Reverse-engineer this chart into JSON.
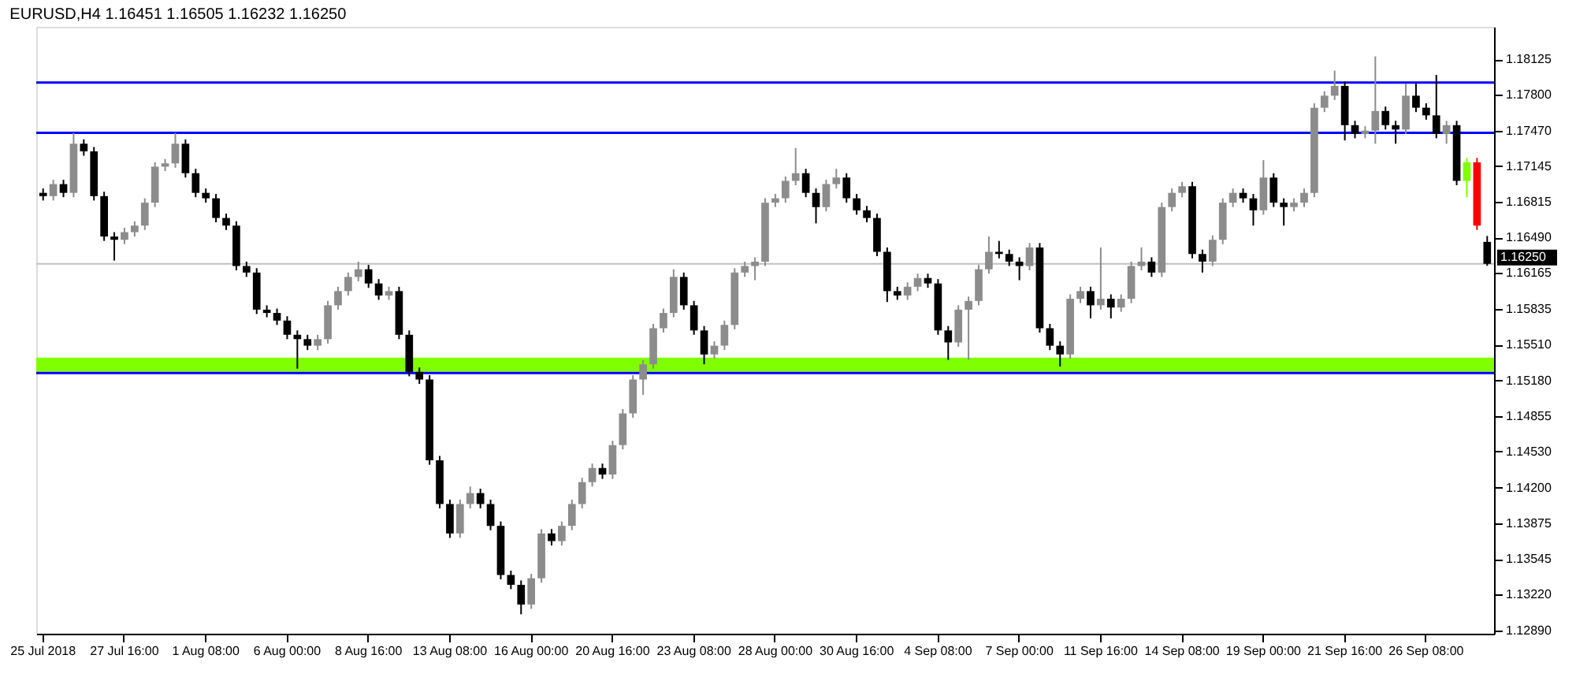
{
  "chart_data": {
    "type": "candlestick",
    "title": "EURUSD,H4  1.16451 1.16505 1.16232 1.16250",
    "categories": [
      "25 Jul 2018",
      null,
      null,
      null,
      null,
      null,
      null,
      null,
      "27 Jul 16:00",
      null,
      null,
      null,
      null,
      null,
      null,
      null,
      "1 Aug 08:00",
      null,
      null,
      null,
      null,
      null,
      null,
      null,
      "6 Aug 00:00",
      null,
      null,
      null,
      null,
      null,
      null,
      null,
      "8 Aug 16:00",
      null,
      null,
      null,
      null,
      null,
      null,
      null,
      "13 Aug 08:00",
      null,
      null,
      null,
      null,
      null,
      null,
      null,
      "16 Aug 00:00",
      null,
      null,
      null,
      null,
      null,
      null,
      null,
      "20 Aug 16:00",
      null,
      null,
      null,
      null,
      null,
      null,
      null,
      "23 Aug 08:00",
      null,
      null,
      null,
      null,
      null,
      null,
      null,
      "28 Aug 00:00",
      null,
      null,
      null,
      null,
      null,
      null,
      null,
      "30 Aug 16:00",
      null,
      null,
      null,
      null,
      null,
      null,
      null,
      "4 Sep 08:00",
      null,
      null,
      null,
      null,
      null,
      null,
      null,
      "7 Sep 00:00",
      null,
      null,
      null,
      null,
      null,
      null,
      null,
      "11 Sep 16:00",
      null,
      null,
      null,
      null,
      null,
      null,
      null,
      "14 Sep 08:00",
      null,
      null,
      null,
      null,
      null,
      null,
      null,
      "19 Sep 00:00",
      null,
      null,
      null,
      null,
      null,
      null,
      null,
      "21 Sep 16:00",
      null,
      null,
      null,
      null,
      null,
      null,
      null,
      "26 Sep 08:00",
      null,
      null,
      null,
      null,
      null,
      null
    ],
    "ohlc": [
      [
        1.169,
        1.1694,
        1.1683,
        1.1687
      ],
      [
        1.1687,
        1.1702,
        1.1683,
        1.1698
      ],
      [
        1.1698,
        1.1702,
        1.1686,
        1.169
      ],
      [
        1.169,
        1.1745,
        1.1686,
        1.1735
      ],
      [
        1.1735,
        1.1739,
        1.1724,
        1.1728
      ],
      [
        1.1728,
        1.1732,
        1.1683,
        1.1687
      ],
      [
        1.1687,
        1.1691,
        1.1646,
        1.165
      ],
      [
        1.165,
        1.1654,
        1.1628,
        1.1647
      ],
      [
        1.1647,
        1.1658,
        1.1643,
        1.1654
      ],
      [
        1.1654,
        1.1664,
        1.165,
        1.166
      ],
      [
        1.166,
        1.1685,
        1.1656,
        1.1681
      ],
      [
        1.1681,
        1.1718,
        1.1677,
        1.1714
      ],
      [
        1.1714,
        1.1721,
        1.171,
        1.1717
      ],
      [
        1.1717,
        1.1745,
        1.1713,
        1.1735
      ],
      [
        1.1735,
        1.1739,
        1.1704,
        1.1708
      ],
      [
        1.1708,
        1.1712,
        1.1686,
        1.169
      ],
      [
        1.169,
        1.1694,
        1.1681,
        1.1685
      ],
      [
        1.1685,
        1.1689,
        1.1663,
        1.1667
      ],
      [
        1.1667,
        1.1671,
        1.1656,
        1.166
      ],
      [
        1.166,
        1.1664,
        1.1619,
        1.1623
      ],
      [
        1.1623,
        1.1627,
        1.1613,
        1.1617
      ],
      [
        1.1617,
        1.1621,
        1.1579,
        1.1583
      ],
      [
        1.1583,
        1.1587,
        1.1576,
        1.158
      ],
      [
        1.158,
        1.1584,
        1.1569,
        1.1573
      ],
      [
        1.1573,
        1.1577,
        1.1556,
        1.156
      ],
      [
        1.156,
        1.1564,
        1.1529,
        1.1556
      ],
      [
        1.1556,
        1.156,
        1.1546,
        1.155
      ],
      [
        1.155,
        1.156,
        1.1546,
        1.1556
      ],
      [
        1.1556,
        1.1591,
        1.1552,
        1.1587
      ],
      [
        1.1587,
        1.1604,
        1.1583,
        1.16
      ],
      [
        1.16,
        1.1617,
        1.1596,
        1.1613
      ],
      [
        1.1613,
        1.1627,
        1.1609,
        1.162
      ],
      [
        1.162,
        1.1624,
        1.1603,
        1.1607
      ],
      [
        1.1607,
        1.1611,
        1.1592,
        1.1596
      ],
      [
        1.1596,
        1.1604,
        1.1592,
        1.16
      ],
      [
        1.16,
        1.1604,
        1.1556,
        1.156
      ],
      [
        1.156,
        1.1564,
        1.1522,
        1.1526
      ],
      [
        1.1526,
        1.153,
        1.1515,
        1.1519
      ],
      [
        1.1519,
        1.1523,
        1.1441,
        1.1445
      ],
      [
        1.1445,
        1.1449,
        1.1401,
        1.1405
      ],
      [
        1.1405,
        1.1409,
        1.1374,
        1.1378
      ],
      [
        1.1378,
        1.1409,
        1.1374,
        1.1405
      ],
      [
        1.1405,
        1.1421,
        1.1401,
        1.1415
      ],
      [
        1.1415,
        1.1419,
        1.1401,
        1.1405
      ],
      [
        1.1405,
        1.1409,
        1.1381,
        1.1385
      ],
      [
        1.1385,
        1.1389,
        1.1336,
        1.134
      ],
      [
        1.134,
        1.1344,
        1.1327,
        1.1331
      ],
      [
        1.1331,
        1.1335,
        1.1304,
        1.1313
      ],
      [
        1.1313,
        1.1341,
        1.1309,
        1.1337
      ],
      [
        1.1337,
        1.1382,
        1.1333,
        1.1378
      ],
      [
        1.1378,
        1.1382,
        1.1367,
        1.1371
      ],
      [
        1.1371,
        1.1389,
        1.1367,
        1.1385
      ],
      [
        1.1385,
        1.1409,
        1.1381,
        1.1405
      ],
      [
        1.1405,
        1.1429,
        1.1401,
        1.1425
      ],
      [
        1.1425,
        1.1442,
        1.1421,
        1.1438
      ],
      [
        1.1438,
        1.1442,
        1.1428,
        1.1432
      ],
      [
        1.1432,
        1.1463,
        1.1428,
        1.1459
      ],
      [
        1.1459,
        1.1492,
        1.1455,
        1.1488
      ],
      [
        1.1488,
        1.1523,
        1.1484,
        1.1519
      ],
      [
        1.1519,
        1.1537,
        1.1505,
        1.1533
      ],
      [
        1.1533,
        1.157,
        1.1529,
        1.1566
      ],
      [
        1.1566,
        1.1584,
        1.1562,
        1.158
      ],
      [
        1.158,
        1.162,
        1.1576,
        1.1613
      ],
      [
        1.1613,
        1.1617,
        1.1583,
        1.1587
      ],
      [
        1.1587,
        1.1591,
        1.156,
        1.1564
      ],
      [
        1.1564,
        1.1568,
        1.1533,
        1.1542
      ],
      [
        1.1542,
        1.1554,
        1.1538,
        1.155
      ],
      [
        1.155,
        1.1573,
        1.1546,
        1.1569
      ],
      [
        1.1569,
        1.1621,
        1.1565,
        1.1617
      ],
      [
        1.1617,
        1.1627,
        1.1613,
        1.1623
      ],
      [
        1.1623,
        1.1631,
        1.161,
        1.1627
      ],
      [
        1.1627,
        1.1685,
        1.1623,
        1.1681
      ],
      [
        1.1681,
        1.1689,
        1.1677,
        1.1685
      ],
      [
        1.1685,
        1.1705,
        1.1681,
        1.1701
      ],
      [
        1.1701,
        1.1731,
        1.1697,
        1.1708
      ],
      [
        1.1708,
        1.1712,
        1.1686,
        1.169
      ],
      [
        1.169,
        1.1694,
        1.1662,
        1.1677
      ],
      [
        1.1677,
        1.1702,
        1.1673,
        1.1698
      ],
      [
        1.1698,
        1.1712,
        1.1694,
        1.1704
      ],
      [
        1.1704,
        1.1708,
        1.1681,
        1.1685
      ],
      [
        1.1685,
        1.1689,
        1.167,
        1.1674
      ],
      [
        1.1674,
        1.1678,
        1.1663,
        1.1667
      ],
      [
        1.1667,
        1.1671,
        1.1632,
        1.1636
      ],
      [
        1.1636,
        1.164,
        1.159,
        1.16
      ],
      [
        1.16,
        1.1604,
        1.1592,
        1.1596
      ],
      [
        1.1596,
        1.1608,
        1.1592,
        1.1604
      ],
      [
        1.1604,
        1.1616,
        1.16,
        1.1612
      ],
      [
        1.1612,
        1.1616,
        1.1603,
        1.1607
      ],
      [
        1.1607,
        1.1611,
        1.156,
        1.1564
      ],
      [
        1.1564,
        1.1568,
        1.1537,
        1.1553
      ],
      [
        1.1553,
        1.1587,
        1.1549,
        1.1583
      ],
      [
        1.1583,
        1.1595,
        1.1537,
        1.1591
      ],
      [
        1.1591,
        1.1624,
        1.1587,
        1.162
      ],
      [
        1.162,
        1.165,
        1.1616,
        1.1636
      ],
      [
        1.1636,
        1.1646,
        1.163,
        1.1634
      ],
      [
        1.1634,
        1.1638,
        1.1623,
        1.1627
      ],
      [
        1.1627,
        1.1631,
        1.161,
        1.1623
      ],
      [
        1.1623,
        1.1644,
        1.1619,
        1.164
      ],
      [
        1.164,
        1.1644,
        1.1562,
        1.1566
      ],
      [
        1.1566,
        1.157,
        1.1546,
        1.155
      ],
      [
        1.155,
        1.1554,
        1.1531,
        1.1542
      ],
      [
        1.1542,
        1.1597,
        1.1538,
        1.1593
      ],
      [
        1.1593,
        1.1604,
        1.1589,
        1.16
      ],
      [
        1.16,
        1.1604,
        1.1575,
        1.1587
      ],
      [
        1.1587,
        1.164,
        1.1583,
        1.1593
      ],
      [
        1.1593,
        1.1597,
        1.1575,
        1.1585
      ],
      [
        1.1585,
        1.1597,
        1.1581,
        1.1593
      ],
      [
        1.1593,
        1.1627,
        1.1589,
        1.1623
      ],
      [
        1.1623,
        1.164,
        1.1619,
        1.1627
      ],
      [
        1.1627,
        1.1631,
        1.1613,
        1.1617
      ],
      [
        1.1617,
        1.1681,
        1.1613,
        1.1677
      ],
      [
        1.1677,
        1.1694,
        1.1673,
        1.169
      ],
      [
        1.169,
        1.17,
        1.1686,
        1.1696
      ],
      [
        1.1696,
        1.17,
        1.163,
        1.1634
      ],
      [
        1.1634,
        1.1638,
        1.1617,
        1.1627
      ],
      [
        1.1627,
        1.1651,
        1.1623,
        1.1647
      ],
      [
        1.1647,
        1.1685,
        1.1643,
        1.1681
      ],
      [
        1.1681,
        1.1694,
        1.1677,
        1.169
      ],
      [
        1.169,
        1.1694,
        1.1681,
        1.1685
      ],
      [
        1.1685,
        1.1689,
        1.166,
        1.1674
      ],
      [
        1.1674,
        1.172,
        1.167,
        1.1704
      ],
      [
        1.1704,
        1.1708,
        1.1677,
        1.1681
      ],
      [
        1.1681,
        1.1685,
        1.166,
        1.1677
      ],
      [
        1.1677,
        1.1685,
        1.1673,
        1.1681
      ],
      [
        1.1681,
        1.1694,
        1.1677,
        1.169
      ],
      [
        1.169,
        1.1772,
        1.1686,
        1.1768
      ],
      [
        1.1768,
        1.1783,
        1.1764,
        1.1779
      ],
      [
        1.1779,
        1.1802,
        1.1775,
        1.1788
      ],
      [
        1.1788,
        1.1792,
        1.1738,
        1.1752
      ],
      [
        1.1752,
        1.1756,
        1.174,
        1.1744
      ],
      [
        1.1744,
        1.1751,
        1.174,
        1.1747
      ],
      [
        1.1747,
        1.1815,
        1.1735,
        1.1765
      ],
      [
        1.1765,
        1.1769,
        1.1748,
        1.1752
      ],
      [
        1.1752,
        1.1756,
        1.1735,
        1.1748
      ],
      [
        1.1748,
        1.179,
        1.1744,
        1.1779
      ],
      [
        1.1779,
        1.179,
        1.1764,
        1.1768
      ],
      [
        1.1768,
        1.1772,
        1.1757,
        1.1761
      ],
      [
        1.1761,
        1.1798,
        1.174,
        1.1744
      ],
      [
        1.1744,
        1.1756,
        1.1735,
        1.1752
      ],
      [
        1.1752,
        1.1756,
        1.1697,
        1.1701
      ],
      [
        1.1701,
        1.1722,
        1.1686,
        1.1718
      ],
      [
        1.1718,
        1.1722,
        1.1656,
        1.166
      ],
      [
        1.16451,
        1.16505,
        1.16232,
        1.1625
      ]
    ],
    "colors": [
      "#000000",
      "#8c8c8c",
      "#000000",
      "#8c8c8c",
      "#000000",
      "#000000",
      "#000000",
      "#000000",
      "#8c8c8c",
      "#8c8c8c",
      "#8c8c8c",
      "#8c8c8c",
      "#8c8c8c",
      "#8c8c8c",
      "#000000",
      "#000000",
      "#000000",
      "#000000",
      "#000000",
      "#000000",
      "#000000",
      "#000000",
      "#000000",
      "#000000",
      "#000000",
      "#000000",
      "#000000",
      "#8c8c8c",
      "#8c8c8c",
      "#8c8c8c",
      "#8c8c8c",
      "#8c8c8c",
      "#000000",
      "#000000",
      "#8c8c8c",
      "#000000",
      "#000000",
      "#000000",
      "#000000",
      "#000000",
      "#000000",
      "#8c8c8c",
      "#8c8c8c",
      "#000000",
      "#000000",
      "#000000",
      "#000000",
      "#000000",
      "#8c8c8c",
      "#8c8c8c",
      "#000000",
      "#8c8c8c",
      "#8c8c8c",
      "#8c8c8c",
      "#8c8c8c",
      "#000000",
      "#8c8c8c",
      "#8c8c8c",
      "#8c8c8c",
      "#8c8c8c",
      "#8c8c8c",
      "#8c8c8c",
      "#8c8c8c",
      "#000000",
      "#000000",
      "#000000",
      "#8c8c8c",
      "#8c8c8c",
      "#8c8c8c",
      "#8c8c8c",
      "#8c8c8c",
      "#8c8c8c",
      "#8c8c8c",
      "#8c8c8c",
      "#8c8c8c",
      "#000000",
      "#000000",
      "#8c8c8c",
      "#8c8c8c",
      "#000000",
      "#000000",
      "#000000",
      "#000000",
      "#000000",
      "#000000",
      "#8c8c8c",
      "#8c8c8c",
      "#000000",
      "#000000",
      "#000000",
      "#8c8c8c",
      "#8c8c8c",
      "#8c8c8c",
      "#8c8c8c",
      "#000000",
      "#000000",
      "#000000",
      "#8c8c8c",
      "#000000",
      "#000000",
      "#000000",
      "#8c8c8c",
      "#8c8c8c",
      "#000000",
      "#8c8c8c",
      "#000000",
      "#8c8c8c",
      "#8c8c8c",
      "#8c8c8c",
      "#000000",
      "#8c8c8c",
      "#8c8c8c",
      "#8c8c8c",
      "#000000",
      "#000000",
      "#8c8c8c",
      "#8c8c8c",
      "#8c8c8c",
      "#000000",
      "#000000",
      "#8c8c8c",
      "#000000",
      "#000000",
      "#8c8c8c",
      "#8c8c8c",
      "#8c8c8c",
      "#8c8c8c",
      "#8c8c8c",
      "#000000",
      "#000000",
      "#8c8c8c",
      "#8c8c8c",
      "#000000",
      "#000000",
      "#8c8c8c",
      "#000000",
      "#000000",
      "#000000",
      "#8c8c8c",
      "#000000",
      "#80ff00",
      "#ff0000",
      "#000000"
    ],
    "ylim": [
      1.12862,
      1.18421
    ],
    "yticks": [
      {
        "value": 1.18125,
        "label": "1.18125"
      },
      {
        "value": 1.178,
        "label": "1.17800"
      },
      {
        "value": 1.1747,
        "label": "1.17470"
      },
      {
        "value": 1.17145,
        "label": "1.17145"
      },
      {
        "value": 1.16815,
        "label": "1.16815"
      },
      {
        "value": 1.1649,
        "label": "1.16490"
      },
      {
        "value": 1.16165,
        "label": "1.16165"
      },
      {
        "value": 1.15835,
        "label": "1.15835"
      },
      {
        "value": 1.1551,
        "label": "1.15510"
      },
      {
        "value": 1.1518,
        "label": "1.15180"
      },
      {
        "value": 1.14855,
        "label": "1.14855"
      },
      {
        "value": 1.1453,
        "label": "1.14530"
      },
      {
        "value": 1.142,
        "label": "1.14200"
      },
      {
        "value": 1.13875,
        "label": "1.13875"
      },
      {
        "value": 1.13545,
        "label": "1.13545"
      },
      {
        "value": 1.1322,
        "label": "1.13220"
      },
      {
        "value": 1.1289,
        "label": "1.12890"
      }
    ],
    "ref_lines": [
      {
        "axis": "y",
        "value": 1.1791,
        "color": "#0000ff"
      },
      {
        "axis": "y",
        "value": 1.1745,
        "color": "#0000ff"
      },
      {
        "axis": "y",
        "value": 1.1525,
        "color": "#0000ff"
      },
      {
        "axis": "y",
        "value": 1.1625,
        "label": "1.16250",
        "color": "#c0c0c0"
      }
    ],
    "bands": [
      {
        "axis": "y",
        "from": 1.1526,
        "to": 1.1539,
        "color": "#80ff00"
      }
    ],
    "grid": false
  }
}
